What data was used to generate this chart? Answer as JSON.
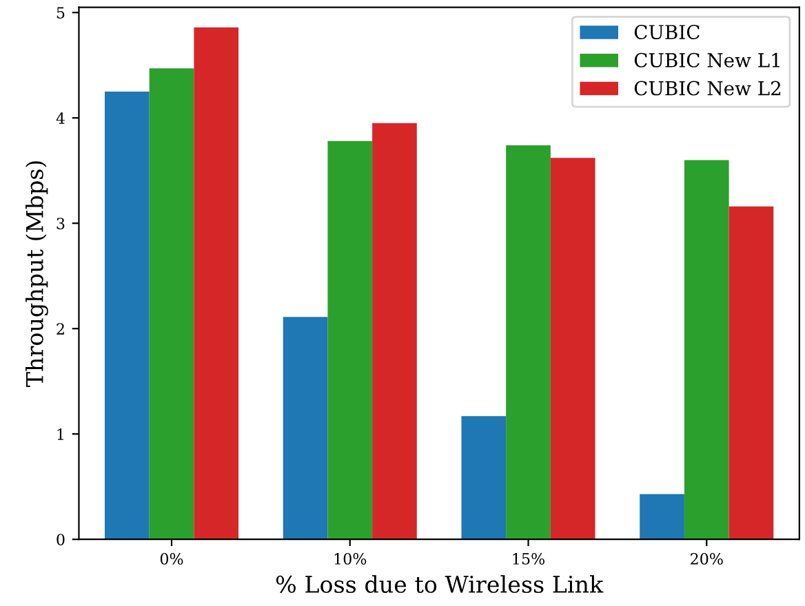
{
  "chart_data": {
    "type": "bar",
    "xlabel": "% Loss due to Wireless Link",
    "ylabel": "Throughput (Mbps)",
    "categories": [
      "0%",
      "10%",
      "15%",
      "20%"
    ],
    "series": [
      {
        "name": "CUBIC",
        "color": "#1f77b4",
        "values": [
          4.25,
          2.11,
          1.17,
          0.43
        ]
      },
      {
        "name": "CUBIC New L1",
        "color": "#2ca02c",
        "values": [
          4.47,
          3.78,
          3.74,
          3.6
        ]
      },
      {
        "name": "CUBIC New L2",
        "color": "#d62728",
        "values": [
          4.86,
          3.95,
          3.62,
          3.16
        ]
      }
    ],
    "ylim": [
      0,
      5.05
    ],
    "yticks": [
      0,
      1,
      2,
      3,
      4,
      5
    ],
    "legend": "top right",
    "grid": false
  }
}
